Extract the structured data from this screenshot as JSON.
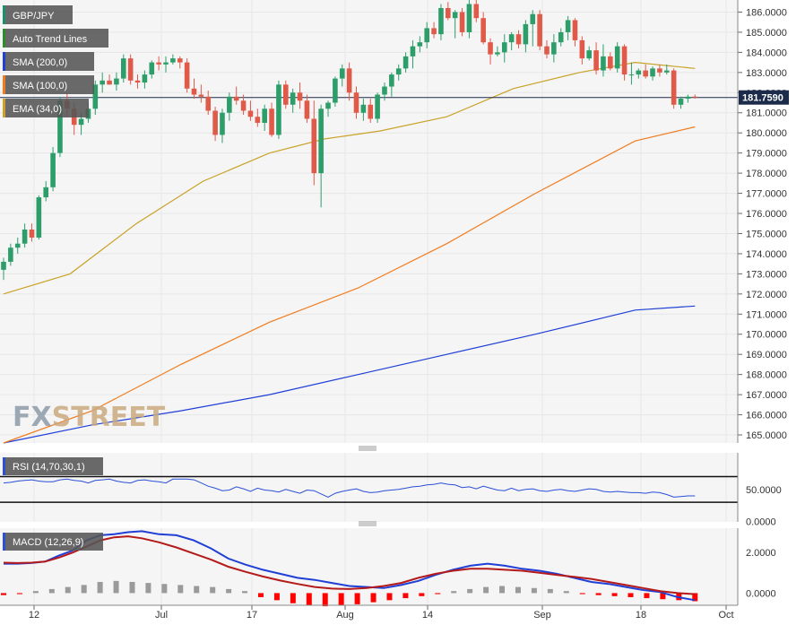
{
  "chart_data": {
    "type": "candlestick",
    "instrument": "GBP/JPY",
    "watermark": "FXSTREET",
    "last_price": "181.7590",
    "price_axis": {
      "range": [
        164.6,
        186.6
      ],
      "tick_labels": [
        "165.0000",
        "166.0000",
        "167.0000",
        "168.0000",
        "169.0000",
        "170.0000",
        "171.0000",
        "172.0000",
        "173.0000",
        "174.0000",
        "175.0000",
        "176.0000",
        "177.0000",
        "178.0000",
        "179.0000",
        "180.0000",
        "181.0000",
        "182.0000",
        "183.0000",
        "184.0000",
        "185.0000",
        "186.0000"
      ]
    },
    "x_axis": {
      "tick_labels": [
        "12",
        "Jul",
        "17",
        "Aug",
        "14",
        "Sep",
        "18",
        "Oct"
      ]
    },
    "candles": [
      [
        173.2,
        173.8,
        172.7,
        173.6
      ],
      [
        173.6,
        174.5,
        173.4,
        174.3
      ],
      [
        174.3,
        174.8,
        174.0,
        174.5
      ],
      [
        174.5,
        175.5,
        174.3,
        175.2
      ],
      [
        175.2,
        175.5,
        174.6,
        174.8
      ],
      [
        174.8,
        176.9,
        174.7,
        176.8
      ],
      [
        176.8,
        177.6,
        176.6,
        177.3
      ],
      [
        177.3,
        179.3,
        177.1,
        179.0
      ],
      [
        179.0,
        181.8,
        178.8,
        181.6
      ],
      [
        181.6,
        182.0,
        180.8,
        181.2
      ],
      [
        181.2,
        181.5,
        179.9,
        180.4
      ],
      [
        180.4,
        181.0,
        179.9,
        180.7
      ],
      [
        180.7,
        181.5,
        180.5,
        181.2
      ],
      [
        181.2,
        182.6,
        180.9,
        182.4
      ],
      [
        182.4,
        183.0,
        182.0,
        182.6
      ],
      [
        182.6,
        182.9,
        182.4,
        182.4
      ],
      [
        182.4,
        183.0,
        182.1,
        182.7
      ],
      [
        182.7,
        183.9,
        182.5,
        183.7
      ],
      [
        183.7,
        183.9,
        182.4,
        182.6
      ],
      [
        182.6,
        182.9,
        182.2,
        182.5
      ],
      [
        182.5,
        183.1,
        182.2,
        182.9
      ],
      [
        182.9,
        183.6,
        182.7,
        183.5
      ],
      [
        183.5,
        183.8,
        183.1,
        183.4
      ],
      [
        183.4,
        183.8,
        183.0,
        183.5
      ],
      [
        183.5,
        183.9,
        183.4,
        183.7
      ],
      [
        183.7,
        183.8,
        183.2,
        183.5
      ],
      [
        183.5,
        183.7,
        182.0,
        182.2
      ],
      [
        182.2,
        182.7,
        181.7,
        181.9
      ],
      [
        181.9,
        182.4,
        181.5,
        181.8
      ],
      [
        181.8,
        182.1,
        180.9,
        181.1
      ],
      [
        181.1,
        181.3,
        179.6,
        179.9
      ],
      [
        179.9,
        181.2,
        179.5,
        181.0
      ],
      [
        181.0,
        182.0,
        180.6,
        181.8
      ],
      [
        181.8,
        182.3,
        181.4,
        181.6
      ],
      [
        181.6,
        181.9,
        180.9,
        181.1
      ],
      [
        181.1,
        181.6,
        180.6,
        180.8
      ],
      [
        180.8,
        181.2,
        180.3,
        180.5
      ],
      [
        180.5,
        181.4,
        180.1,
        181.2
      ],
      [
        181.2,
        181.5,
        179.8,
        179.9
      ],
      [
        179.9,
        182.6,
        179.7,
        182.4
      ],
      [
        182.4,
        182.6,
        181.2,
        181.4
      ],
      [
        181.4,
        182.2,
        181.0,
        182.0
      ],
      [
        182.0,
        182.5,
        181.2,
        181.6
      ],
      [
        181.6,
        181.9,
        180.5,
        180.7
      ],
      [
        180.7,
        181.6,
        177.4,
        178.0
      ],
      [
        178.0,
        181.4,
        176.3,
        181.2
      ],
      [
        181.2,
        181.6,
        180.8,
        181.5
      ],
      [
        181.5,
        182.8,
        181.3,
        182.7
      ],
      [
        182.7,
        183.4,
        182.3,
        183.2
      ],
      [
        183.2,
        183.5,
        181.6,
        182.0
      ],
      [
        182.0,
        182.3,
        180.7,
        181.0
      ],
      [
        181.0,
        181.7,
        180.6,
        181.4
      ],
      [
        181.4,
        181.7,
        180.5,
        180.7
      ],
      [
        180.7,
        182.0,
        180.5,
        181.9
      ],
      [
        181.9,
        182.5,
        181.6,
        182.3
      ],
      [
        182.3,
        183.0,
        181.8,
        182.9
      ],
      [
        182.9,
        183.4,
        182.6,
        183.2
      ],
      [
        183.2,
        184.0,
        183.0,
        183.8
      ],
      [
        183.8,
        184.6,
        183.2,
        184.3
      ],
      [
        184.3,
        184.8,
        184.0,
        184.5
      ],
      [
        184.5,
        185.5,
        184.2,
        185.2
      ],
      [
        185.2,
        185.5,
        184.7,
        184.9
      ],
      [
        184.9,
        186.4,
        184.6,
        186.2
      ],
      [
        186.2,
        186.5,
        185.6,
        185.7
      ],
      [
        185.7,
        186.1,
        184.7,
        186.0
      ],
      [
        186.0,
        186.2,
        184.8,
        185.0
      ],
      [
        185.0,
        186.6,
        184.7,
        186.4
      ],
      [
        186.4,
        186.6,
        185.5,
        185.7
      ],
      [
        185.7,
        186.0,
        184.4,
        184.5
      ],
      [
        184.5,
        184.7,
        183.4,
        183.9
      ],
      [
        183.9,
        184.3,
        183.8,
        184.0
      ],
      [
        184.0,
        184.9,
        183.5,
        184.5
      ],
      [
        184.5,
        185.0,
        184.1,
        184.9
      ],
      [
        184.9,
        185.1,
        184.2,
        184.4
      ],
      [
        184.4,
        185.6,
        184.0,
        185.4
      ],
      [
        185.4,
        186.1,
        184.3,
        185.9
      ],
      [
        185.9,
        186.1,
        184.1,
        184.3
      ],
      [
        184.3,
        184.6,
        183.7,
        183.9
      ],
      [
        183.9,
        184.9,
        183.5,
        184.5
      ],
      [
        184.5,
        185.2,
        184.3,
        185.0
      ],
      [
        185.0,
        185.8,
        184.6,
        185.6
      ],
      [
        185.6,
        185.7,
        184.3,
        184.6
      ],
      [
        184.6,
        184.8,
        183.4,
        183.7
      ],
      [
        183.7,
        184.3,
        183.6,
        184.1
      ],
      [
        184.1,
        184.5,
        182.9,
        183.1
      ],
      [
        183.1,
        184.4,
        182.8,
        183.8
      ],
      [
        183.8,
        184.0,
        183.1,
        183.2
      ],
      [
        183.2,
        184.5,
        183.0,
        184.3
      ],
      [
        184.3,
        184.4,
        182.6,
        182.9
      ],
      [
        182.9,
        183.5,
        182.4,
        182.9
      ],
      [
        182.9,
        183.2,
        182.7,
        183.1
      ],
      [
        183.1,
        183.4,
        182.7,
        182.8
      ],
      [
        182.8,
        183.3,
        182.6,
        183.2
      ],
      [
        183.2,
        183.4,
        182.8,
        183.0
      ],
      [
        183.0,
        183.4,
        182.9,
        183.1
      ],
      [
        183.1,
        183.2,
        181.2,
        181.4
      ],
      [
        181.4,
        181.8,
        181.2,
        181.7
      ],
      [
        181.7,
        181.9,
        181.5,
        181.8
      ],
      [
        181.8,
        181.9,
        181.7,
        181.76
      ]
    ],
    "series": [
      {
        "name": "SMA (200,0)",
        "color": "#1f3fd6",
        "values": [
          [
            0,
            164.6
          ],
          [
            40,
            165.5
          ],
          [
            80,
            166.2
          ],
          [
            120,
            167.0
          ],
          [
            160,
            168.0
          ],
          [
            200,
            169.0
          ],
          [
            240,
            170.0
          ],
          [
            285,
            171.2
          ],
          [
            312,
            171.4
          ]
        ]
      },
      {
        "name": "SMA (100,0)",
        "color": "#f07c1f",
        "values": [
          [
            0,
            164.6
          ],
          [
            40,
            166.2
          ],
          [
            80,
            168.5
          ],
          [
            120,
            170.6
          ],
          [
            160,
            172.3
          ],
          [
            200,
            174.5
          ],
          [
            240,
            177.0
          ],
          [
            285,
            179.6
          ],
          [
            312,
            180.3
          ]
        ]
      },
      {
        "name": "EMA (34,0)",
        "color": "#c9a227",
        "values": [
          [
            0,
            172.0
          ],
          [
            30,
            173.0
          ],
          [
            60,
            175.5
          ],
          [
            90,
            177.6
          ],
          [
            120,
            179.0
          ],
          [
            145,
            179.7
          ],
          [
            170,
            180.1
          ],
          [
            200,
            180.8
          ],
          [
            230,
            182.2
          ],
          [
            260,
            183.0
          ],
          [
            285,
            183.5
          ],
          [
            312,
            183.2
          ]
        ]
      }
    ],
    "legend": [
      "GBP/JPY",
      "Auto Trend Lines",
      "SMA (200,0)",
      "SMA (100,0)",
      "EMA (34,0)"
    ],
    "legend_colors": [
      "#1a8f6b",
      "#2e8b2e",
      "#1f3fd6",
      "#f07c1f",
      "#c9a227"
    ],
    "candle_colors": {
      "up": "#2d9e6a",
      "down": "#e05a4a"
    },
    "rsi": {
      "label": "RSI (14,70,30,1)",
      "range": [
        0,
        100
      ],
      "tick_labels": [
        "50.0000",
        "0.0000"
      ],
      "bands": [
        70,
        30
      ],
      "color": "#2b4fd6",
      "values": [
        60,
        61,
        63,
        64,
        65,
        63,
        62,
        62,
        65,
        66,
        64,
        63,
        60,
        64,
        65,
        66,
        63,
        61,
        60,
        64,
        65,
        63,
        62,
        60,
        66,
        66,
        66,
        65,
        60,
        55,
        52,
        48,
        49,
        54,
        51,
        47,
        52,
        49,
        48,
        46,
        50,
        47,
        44,
        49,
        48,
        43,
        38,
        44,
        47,
        49,
        51,
        47,
        45,
        46,
        48,
        49,
        50,
        52,
        54,
        55,
        57,
        58,
        60,
        58,
        57,
        53,
        54,
        51,
        55,
        52,
        49,
        48,
        52,
        48,
        50,
        51,
        48,
        47,
        49,
        50,
        48,
        47,
        49,
        51,
        50,
        47,
        46,
        47,
        46,
        45,
        45,
        44,
        46,
        45,
        42,
        38,
        39,
        40,
        40
      ]
    },
    "macd": {
      "label": "MACD (12,26,9)",
      "range": [
        -0.6,
        3.2
      ],
      "tick_labels": [
        "2.0000",
        "0.0000"
      ],
      "macd_color": "#1f3fd6",
      "signal_color": "#b51a1a",
      "macd": [
        [
          0,
          1.45
        ],
        [
          4,
          1.45
        ],
        [
          8,
          1.48
        ],
        [
          12,
          1.55
        ],
        [
          16,
          1.85
        ],
        [
          20,
          2.1
        ],
        [
          24,
          2.6
        ],
        [
          28,
          2.85
        ],
        [
          32,
          2.9
        ],
        [
          36,
          3.0
        ],
        [
          40,
          3.05
        ],
        [
          45,
          2.9
        ],
        [
          50,
          2.85
        ],
        [
          55,
          2.6
        ],
        [
          60,
          2.2
        ],
        [
          65,
          1.7
        ],
        [
          70,
          1.4
        ],
        [
          75,
          1.15
        ],
        [
          80,
          0.95
        ],
        [
          85,
          0.75
        ],
        [
          90,
          0.65
        ],
        [
          95,
          0.5
        ],
        [
          100,
          0.35
        ],
        [
          105,
          0.3
        ],
        [
          110,
          0.25
        ],
        [
          115,
          0.4
        ],
        [
          120,
          0.6
        ],
        [
          125,
          0.9
        ],
        [
          130,
          1.15
        ],
        [
          135,
          1.35
        ],
        [
          140,
          1.45
        ],
        [
          145,
          1.35
        ],
        [
          150,
          1.2
        ],
        [
          155,
          1.1
        ],
        [
          160,
          0.95
        ],
        [
          165,
          0.75
        ],
        [
          170,
          0.55
        ],
        [
          175,
          0.45
        ],
        [
          180,
          0.3
        ],
        [
          185,
          0.15
        ],
        [
          190,
          0.05
        ],
        [
          195,
          -0.2
        ],
        [
          200,
          -0.35
        ]
      ],
      "signal": [
        [
          0,
          1.5
        ],
        [
          4,
          1.48
        ],
        [
          8,
          1.5
        ],
        [
          12,
          1.55
        ],
        [
          16,
          1.75
        ],
        [
          20,
          2.0
        ],
        [
          24,
          2.3
        ],
        [
          28,
          2.6
        ],
        [
          32,
          2.75
        ],
        [
          36,
          2.8
        ],
        [
          40,
          2.7
        ],
        [
          45,
          2.5
        ],
        [
          50,
          2.25
        ],
        [
          55,
          1.95
        ],
        [
          60,
          1.65
        ],
        [
          65,
          1.3
        ],
        [
          70,
          1.05
        ],
        [
          75,
          0.82
        ],
        [
          80,
          0.62
        ],
        [
          85,
          0.45
        ],
        [
          90,
          0.3
        ],
        [
          95,
          0.22
        ],
        [
          100,
          0.2
        ],
        [
          105,
          0.25
        ],
        [
          110,
          0.35
        ],
        [
          115,
          0.5
        ],
        [
          120,
          0.75
        ],
        [
          125,
          0.95
        ],
        [
          130,
          1.1
        ],
        [
          135,
          1.2
        ],
        [
          140,
          1.2
        ],
        [
          145,
          1.15
        ],
        [
          150,
          1.1
        ],
        [
          155,
          1.0
        ],
        [
          160,
          0.9
        ],
        [
          165,
          0.8
        ],
        [
          170,
          0.7
        ],
        [
          175,
          0.55
        ],
        [
          180,
          0.4
        ],
        [
          185,
          0.25
        ],
        [
          190,
          0.1
        ],
        [
          195,
          0.0
        ],
        [
          200,
          -0.05
        ]
      ],
      "histogram": [
        -0.1,
        -0.05,
        0.1,
        0.2,
        0.3,
        0.4,
        0.55,
        0.6,
        0.55,
        0.5,
        0.45,
        0.4,
        0.35,
        0.3,
        0.2,
        0.1,
        -0.2,
        -0.35,
        -0.5,
        -0.6,
        -0.65,
        -0.6,
        -0.55,
        -0.45,
        -0.35,
        -0.25,
        -0.15,
        -0.05,
        0.1,
        0.2,
        0.3,
        0.35,
        0.3,
        0.25,
        0.2,
        0.1,
        -0.05,
        -0.1,
        -0.15,
        -0.2,
        -0.25,
        -0.3,
        -0.35,
        -0.4
      ]
    }
  }
}
